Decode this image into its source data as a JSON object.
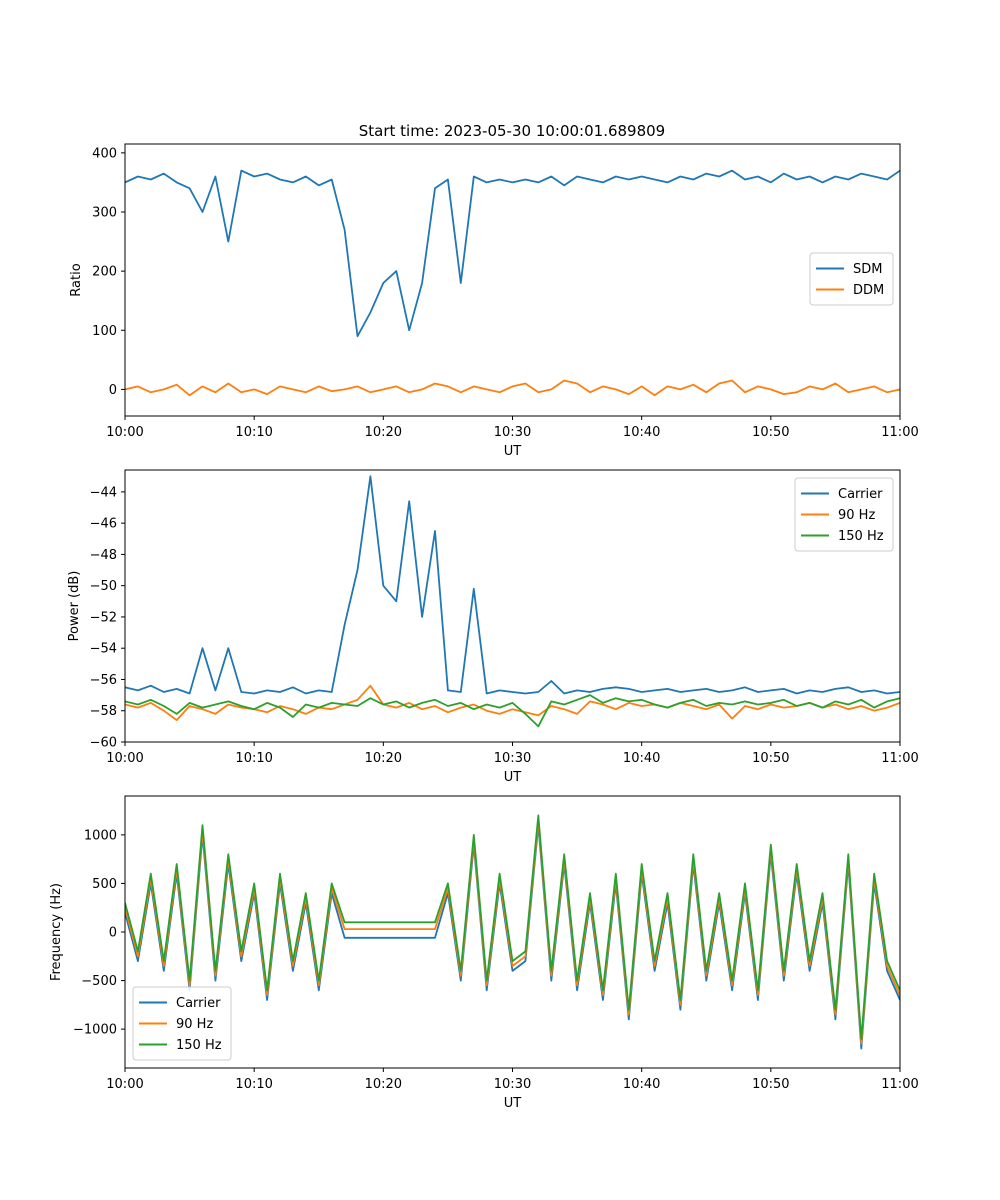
{
  "figure_title": "Start time: 2023-05-30 10:00:01.689809",
  "chart_data": [
    {
      "type": "line",
      "title": "Start time: 2023-05-30 10:00:01.689809",
      "xlabel": "UT",
      "ylabel": "Ratio",
      "x_ticks": [
        "10:00",
        "10:10",
        "10:20",
        "10:30",
        "10:40",
        "10:50",
        "11:00"
      ],
      "x_range_minutes": [
        0,
        60
      ],
      "y_ticks": [
        0,
        100,
        200,
        300,
        400
      ],
      "ylim": [
        -45,
        415
      ],
      "legend_position": "center-right",
      "x_minutes": [
        0,
        1,
        2,
        3,
        4,
        5,
        6,
        7,
        8,
        9,
        10,
        11,
        12,
        13,
        14,
        15,
        16,
        17,
        18,
        19,
        20,
        21,
        22,
        23,
        24,
        25,
        26,
        27,
        28,
        29,
        30,
        31,
        32,
        33,
        34,
        35,
        36,
        37,
        38,
        39,
        40,
        41,
        42,
        43,
        44,
        45,
        46,
        47,
        48,
        49,
        50,
        51,
        52,
        53,
        54,
        55,
        56,
        57,
        58,
        59,
        60
      ],
      "series": [
        {
          "name": "SDM",
          "color": "#1f77b4",
          "values": [
            350,
            360,
            355,
            365,
            350,
            340,
            300,
            360,
            250,
            370,
            360,
            365,
            355,
            350,
            360,
            345,
            355,
            270,
            90,
            130,
            180,
            200,
            100,
            180,
            340,
            355,
            180,
            360,
            350,
            355,
            350,
            355,
            350,
            360,
            345,
            360,
            355,
            350,
            360,
            355,
            360,
            355,
            350,
            360,
            355,
            365,
            360,
            370,
            355,
            360,
            350,
            365,
            355,
            360,
            350,
            360,
            355,
            365,
            360,
            355,
            370
          ]
        },
        {
          "name": "DDM",
          "color": "#ff7f0e",
          "values": [
            0,
            5,
            -5,
            0,
            8,
            -10,
            5,
            -5,
            10,
            -5,
            0,
            -8,
            5,
            0,
            -5,
            5,
            -3,
            0,
            5,
            -5,
            0,
            5,
            -5,
            0,
            10,
            5,
            -5,
            5,
            0,
            -5,
            5,
            10,
            -5,
            0,
            15,
            10,
            -5,
            5,
            0,
            -8,
            5,
            -10,
            5,
            0,
            8,
            -5,
            10,
            15,
            -5,
            5,
            0,
            -8,
            -5,
            5,
            0,
            10,
            -5,
            0,
            5,
            -5,
            0
          ]
        }
      ]
    },
    {
      "type": "line",
      "xlabel": "UT",
      "ylabel": "Power (dB)",
      "x_ticks": [
        "10:00",
        "10:10",
        "10:20",
        "10:30",
        "10:40",
        "10:50",
        "11:00"
      ],
      "x_range_minutes": [
        0,
        60
      ],
      "y_ticks": [
        -60,
        -58,
        -56,
        -54,
        -52,
        -50,
        -48,
        -46,
        -44
      ],
      "ylim": [
        -60,
        -42.6
      ],
      "legend_position": "top-right",
      "x_minutes": [
        0,
        1,
        2,
        3,
        4,
        5,
        6,
        7,
        8,
        9,
        10,
        11,
        12,
        13,
        14,
        15,
        16,
        17,
        18,
        19,
        20,
        21,
        22,
        23,
        24,
        25,
        26,
        27,
        28,
        29,
        30,
        31,
        32,
        33,
        34,
        35,
        36,
        37,
        38,
        39,
        40,
        41,
        42,
        43,
        44,
        45,
        46,
        47,
        48,
        49,
        50,
        51,
        52,
        53,
        54,
        55,
        56,
        57,
        58,
        59,
        60
      ],
      "series": [
        {
          "name": "Carrier",
          "color": "#1f77b4",
          "values": [
            -56.5,
            -56.7,
            -56.4,
            -56.8,
            -56.6,
            -56.9,
            -54,
            -56.7,
            -54,
            -56.8,
            -56.9,
            -56.7,
            -56.8,
            -56.5,
            -56.9,
            -56.7,
            -56.8,
            -52.5,
            -49,
            -43,
            -50,
            -51,
            -44.6,
            -52,
            -46.5,
            -56.7,
            -56.8,
            -50.2,
            -56.9,
            -56.7,
            -56.8,
            -56.9,
            -56.8,
            -56.1,
            -56.9,
            -56.7,
            -56.8,
            -56.6,
            -56.5,
            -56.6,
            -56.8,
            -56.7,
            -56.6,
            -56.8,
            -56.7,
            -56.6,
            -56.8,
            -56.7,
            -56.5,
            -56.8,
            -56.7,
            -56.6,
            -56.9,
            -56.7,
            -56.8,
            -56.6,
            -56.5,
            -56.8,
            -56.7,
            -56.9,
            -56.8
          ]
        },
        {
          "name": "90 Hz",
          "color": "#ff7f0e",
          "values": [
            -57.6,
            -57.8,
            -57.5,
            -58.0,
            -58.6,
            -57.7,
            -57.9,
            -58.2,
            -57.6,
            -57.8,
            -57.9,
            -58.1,
            -57.7,
            -57.9,
            -58.2,
            -57.8,
            -57.9,
            -57.6,
            -57.3,
            -56.4,
            -57.6,
            -57.8,
            -57.5,
            -57.9,
            -57.7,
            -58.1,
            -57.8,
            -57.6,
            -58.0,
            -58.2,
            -57.9,
            -58.1,
            -58.3,
            -57.7,
            -57.9,
            -58.2,
            -57.4,
            -57.6,
            -57.9,
            -57.5,
            -57.7,
            -57.6,
            -57.8,
            -57.5,
            -57.7,
            -57.9,
            -57.6,
            -58.5,
            -57.7,
            -57.9,
            -57.6,
            -57.8,
            -57.7,
            -57.5,
            -57.8,
            -57.6,
            -57.9,
            -57.7,
            -58.0,
            -57.8,
            -57.5
          ]
        },
        {
          "name": "150 Hz",
          "color": "#2ca02c",
          "values": [
            -57.4,
            -57.6,
            -57.3,
            -57.7,
            -58.2,
            -57.5,
            -57.8,
            -57.6,
            -57.4,
            -57.7,
            -57.9,
            -57.5,
            -57.8,
            -58.4,
            -57.6,
            -57.8,
            -57.5,
            -57.6,
            -57.7,
            -57.2,
            -57.6,
            -57.4,
            -57.8,
            -57.5,
            -57.3,
            -57.7,
            -57.5,
            -57.9,
            -57.6,
            -57.8,
            -57.5,
            -58.2,
            -59.0,
            -57.4,
            -57.6,
            -57.3,
            -57.0,
            -57.5,
            -57.2,
            -57.4,
            -57.3,
            -57.6,
            -57.8,
            -57.5,
            -57.3,
            -57.7,
            -57.5,
            -57.6,
            -57.4,
            -57.6,
            -57.5,
            -57.3,
            -57.7,
            -57.5,
            -57.8,
            -57.4,
            -57.6,
            -57.3,
            -57.8,
            -57.4,
            -57.2
          ]
        }
      ]
    },
    {
      "type": "line",
      "xlabel": "UT",
      "ylabel": "Frequency (Hz)",
      "x_ticks": [
        "10:00",
        "10:10",
        "10:20",
        "10:30",
        "10:40",
        "10:50",
        "11:00"
      ],
      "x_range_minutes": [
        0,
        60
      ],
      "y_ticks": [
        -1000,
        -500,
        0,
        500,
        1000
      ],
      "ylim": [
        -1400,
        1400
      ],
      "legend_position": "bottom-left",
      "x_minutes": [
        0,
        1,
        2,
        3,
        4,
        5,
        6,
        7,
        8,
        9,
        10,
        11,
        12,
        13,
        14,
        15,
        16,
        17,
        18,
        19,
        20,
        21,
        22,
        23,
        24,
        25,
        26,
        27,
        28,
        29,
        30,
        31,
        32,
        33,
        34,
        35,
        36,
        37,
        38,
        39,
        40,
        41,
        42,
        43,
        44,
        45,
        46,
        47,
        48,
        49,
        50,
        51,
        52,
        53,
        54,
        55,
        56,
        57,
        58,
        59,
        60
      ],
      "series": [
        {
          "name": "Carrier",
          "color": "#1f77b4",
          "values": [
            200,
            -300,
            500,
            -400,
            600,
            -600,
            1000,
            -500,
            700,
            -300,
            400,
            -700,
            500,
            -400,
            300,
            -600,
            400,
            -60,
            -60,
            -60,
            -60,
            -60,
            -60,
            -60,
            -60,
            400,
            -500,
            900,
            -600,
            500,
            -400,
            -300,
            1100,
            -500,
            700,
            -600,
            300,
            -700,
            500,
            -900,
            600,
            -400,
            300,
            -800,
            700,
            -500,
            300,
            -600,
            400,
            -700,
            800,
            -500,
            600,
            -400,
            300,
            -900,
            700,
            -1200,
            500,
            -400,
            -700
          ]
        },
        {
          "name": "90 Hz",
          "color": "#ff7f0e",
          "values": [
            250,
            -250,
            550,
            -350,
            650,
            -550,
            1050,
            -450,
            750,
            -250,
            450,
            -650,
            550,
            -350,
            350,
            -550,
            450,
            30,
            30,
            30,
            30,
            30,
            30,
            30,
            30,
            450,
            -450,
            950,
            -550,
            550,
            -350,
            -250,
            1150,
            -450,
            750,
            -550,
            350,
            -650,
            550,
            -850,
            650,
            -350,
            350,
            -750,
            750,
            -450,
            350,
            -550,
            450,
            -650,
            850,
            -450,
            650,
            -350,
            350,
            -850,
            750,
            -1150,
            550,
            -350,
            -650
          ]
        },
        {
          "name": "150 Hz",
          "color": "#2ca02c",
          "values": [
            300,
            -200,
            600,
            -300,
            700,
            -500,
            1100,
            -400,
            800,
            -200,
            500,
            -600,
            600,
            -300,
            400,
            -500,
            500,
            100,
            100,
            100,
            100,
            100,
            100,
            100,
            100,
            500,
            -400,
            1000,
            -500,
            600,
            -300,
            -200,
            1200,
            -400,
            800,
            -500,
            400,
            -600,
            600,
            -800,
            700,
            -300,
            400,
            -700,
            800,
            -400,
            400,
            -500,
            500,
            -600,
            900,
            -400,
            700,
            -300,
            400,
            -800,
            800,
            -1100,
            600,
            -300,
            -600
          ]
        }
      ]
    }
  ]
}
